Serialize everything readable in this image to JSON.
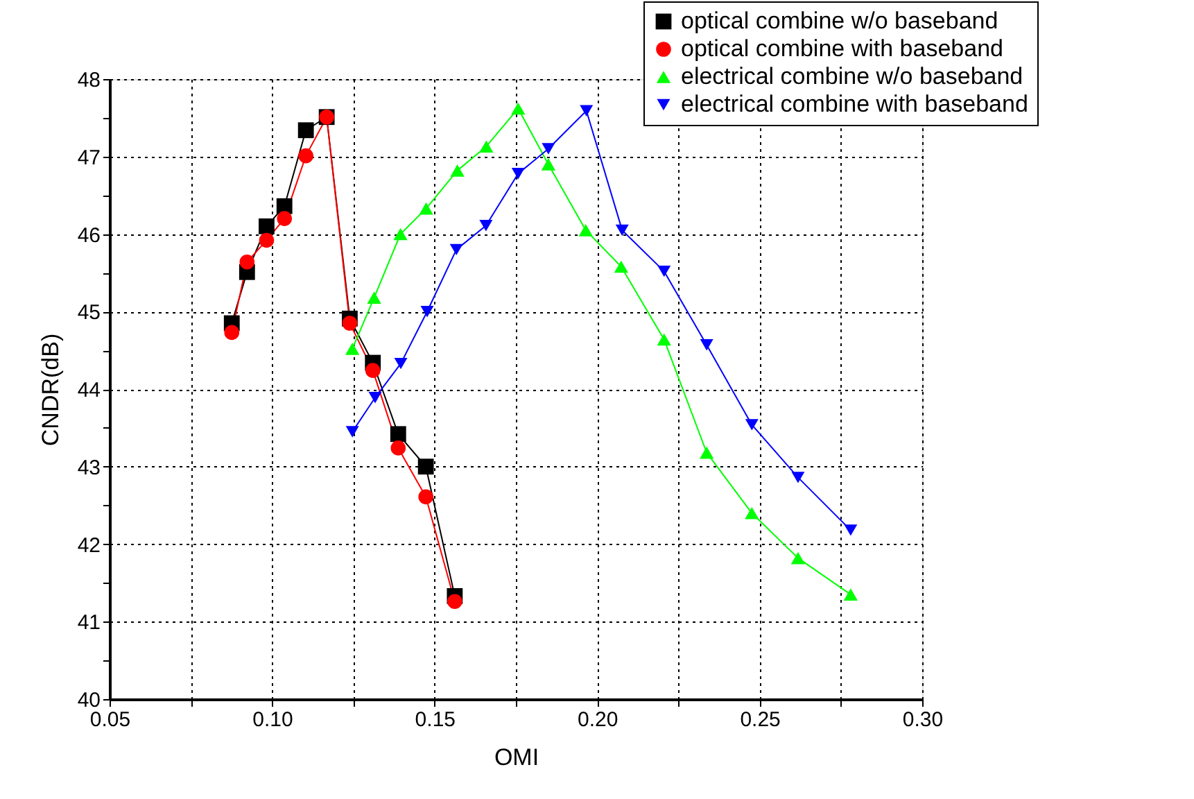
{
  "chart_data": {
    "type": "line",
    "xlabel": "OMI",
    "ylabel": "CNDR(dB)",
    "xlim": [
      0.05,
      0.3
    ],
    "xticks": [
      {
        "value": 0.05,
        "label": "0.05"
      },
      {
        "value": 0.075,
        "label": null
      },
      {
        "value": 0.1,
        "label": "0.10"
      },
      {
        "value": 0.125,
        "label": null
      },
      {
        "value": 0.15,
        "label": "0.15"
      },
      {
        "value": 0.175,
        "label": null
      },
      {
        "value": 0.2,
        "label": "0.20"
      },
      {
        "value": 0.225,
        "label": null
      },
      {
        "value": 0.25,
        "label": "0.25"
      },
      {
        "value": 0.275,
        "label": null
      },
      {
        "value": 0.3,
        "label": "0.30"
      }
    ],
    "ylim": [
      40,
      48
    ],
    "yticks": [
      40,
      {
        "value": 40.5,
        "label": null
      },
      41,
      {
        "value": 41.5,
        "label": null
      },
      42,
      {
        "value": 42.5,
        "label": null
      },
      43,
      {
        "value": 43.5,
        "label": null
      },
      44,
      {
        "value": 44.5,
        "label": null
      },
      45,
      {
        "value": 45.5,
        "label": null
      },
      46,
      {
        "value": 46.5,
        "label": null
      },
      47,
      {
        "value": 47.5,
        "label": null
      },
      48
    ],
    "grid": true,
    "legend": "top right",
    "line_style": "solid",
    "series": [
      {
        "name": "optical combine w/o baseband",
        "color": "#000000",
        "marker": "square",
        "x": [
          0.0876,
          0.0923,
          0.0983,
          0.1038,
          0.1104,
          0.1168,
          0.1239,
          0.131,
          0.1388,
          0.1473,
          0.1562
        ],
        "values": [
          44.85,
          45.51,
          46.1,
          46.36,
          47.34,
          47.51,
          44.91,
          44.34,
          43.42,
          43.0,
          41.33
        ]
      },
      {
        "name": "optical combine with baseband",
        "color": "#ff0000",
        "marker": "circle",
        "x": [
          0.0876,
          0.0923,
          0.0983,
          0.1038,
          0.1104,
          0.1168,
          0.1239,
          0.131,
          0.1388,
          0.1473,
          0.1562
        ],
        "values": [
          44.73,
          45.64,
          45.92,
          46.2,
          47.01,
          47.51,
          44.85,
          44.24,
          43.24,
          42.61,
          41.26
        ]
      },
      {
        "name": "electrical combine w/o baseband",
        "color": "#00ff00",
        "marker": "triangle-up",
        "x": [
          0.1247,
          0.1314,
          0.1395,
          0.1474,
          0.157,
          0.1659,
          0.1757,
          0.185,
          0.1965,
          0.2074,
          0.2206,
          0.2337,
          0.2476,
          0.2618,
          0.278
        ],
        "values": [
          44.52,
          45.18,
          46.0,
          46.33,
          46.82,
          47.13,
          47.62,
          46.9,
          46.05,
          45.58,
          44.64,
          43.18,
          42.4,
          41.82,
          41.35
        ]
      },
      {
        "name": "electrical combine with baseband",
        "color": "#0000ff",
        "marker": "triangle-down",
        "x": [
          0.1247,
          0.1317,
          0.1396,
          0.1477,
          0.1567,
          0.1658,
          0.1757,
          0.185,
          0.1967,
          0.2077,
          0.2206,
          0.2337,
          0.2476,
          0.2618,
          0.278
        ],
        "values": [
          43.45,
          43.89,
          44.33,
          45.0,
          45.8,
          46.11,
          46.78,
          47.1,
          47.59,
          46.05,
          45.52,
          44.57,
          43.54,
          42.86,
          42.18
        ]
      }
    ]
  }
}
